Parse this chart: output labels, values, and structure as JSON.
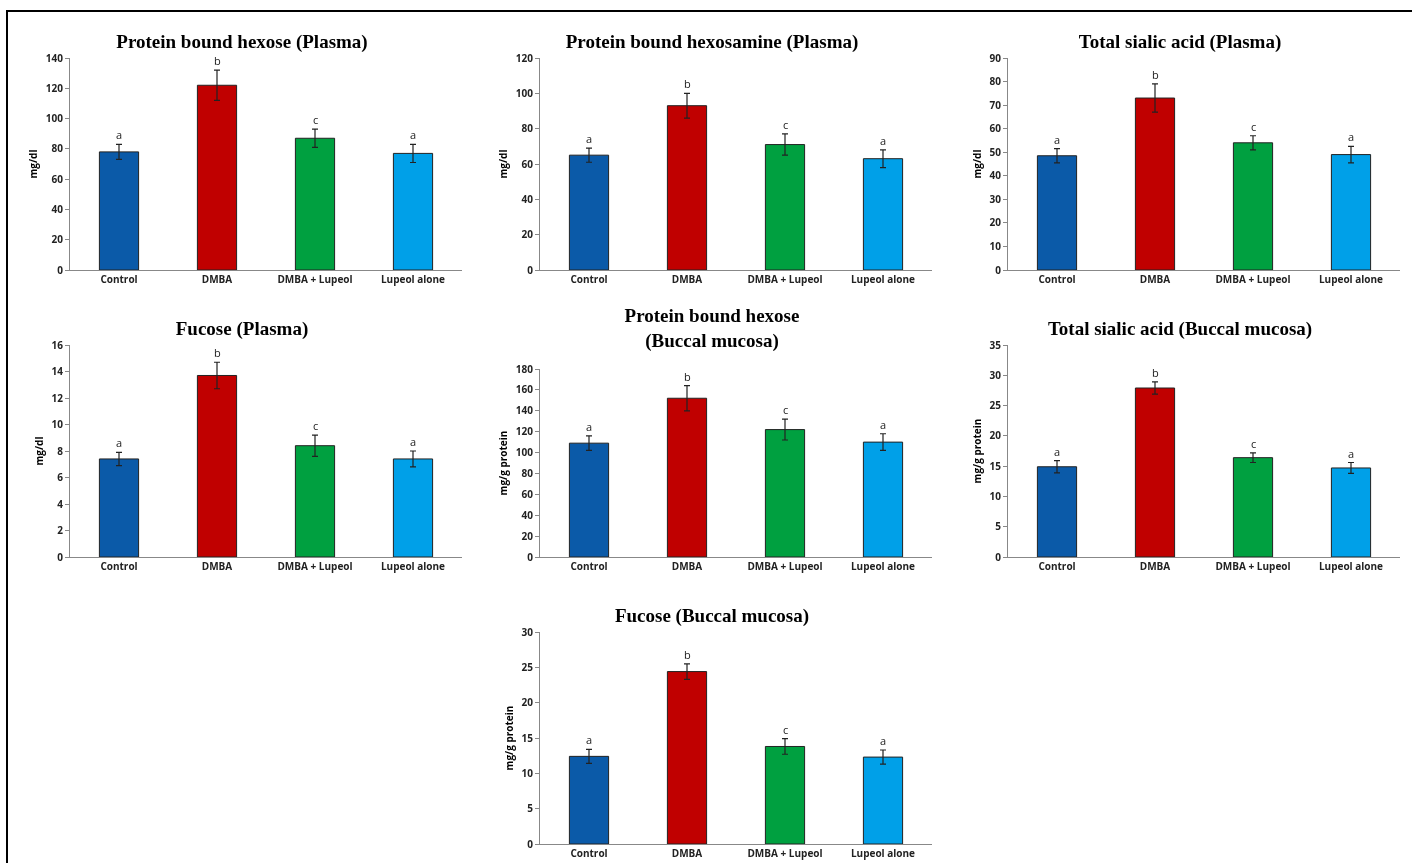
{
  "chart_data": [
    {
      "type": "bar",
      "title": "Protein bound hexose (Plasma)",
      "ylabel": "mg/dl",
      "categories": [
        "Control",
        "DMBA",
        "DMBA + Lupeol",
        "Lupeol alone"
      ],
      "values": [
        78,
        122,
        87,
        77
      ],
      "errors": [
        5,
        10,
        6,
        6
      ],
      "colors": [
        "#0b5aa8",
        "#c00000",
        "#00a040",
        "#00a0e8"
      ],
      "ylim": [
        0,
        140
      ],
      "yticks": [
        0,
        20,
        40,
        60,
        80,
        100,
        120,
        140
      ],
      "annotations": [
        {
          "text": "a",
          "x": "Control",
          "y": 83
        },
        {
          "text": "b",
          "x": "DMBA",
          "y": 132
        },
        {
          "text": "c",
          "x": "DMBA + Lupeol",
          "y": 93
        },
        {
          "text": "a",
          "x": "Lupeol alone",
          "y": 83
        }
      ]
    },
    {
      "type": "bar",
      "title": "Protein bound hexosamine (Plasma)",
      "ylabel": "mg/dl",
      "categories": [
        "Control",
        "DMBA",
        "DMBA + Lupeol",
        "Lupeol alone"
      ],
      "values": [
        65,
        93,
        71,
        63
      ],
      "errors": [
        4,
        7,
        6,
        5
      ],
      "colors": [
        "#0b5aa8",
        "#c00000",
        "#00a040",
        "#00a0e8"
      ],
      "ylim": [
        0,
        120
      ],
      "yticks": [
        0,
        20,
        40,
        60,
        80,
        100,
        120
      ],
      "annotations": [
        {
          "text": "a",
          "x": "Control",
          "y": 69
        },
        {
          "text": "b",
          "x": "DMBA",
          "y": 100
        },
        {
          "text": "c",
          "x": "DMBA + Lupeol",
          "y": 77
        },
        {
          "text": "a",
          "x": "Lupeol alone",
          "y": 68
        }
      ]
    },
    {
      "type": "bar",
      "title": "Total sialic acid (Plasma)",
      "ylabel": "mg/dl",
      "categories": [
        "Control",
        "DMBA",
        "DMBA + Lupeol",
        "Lupeol alone"
      ],
      "values": [
        48.5,
        73,
        54,
        49
      ],
      "errors": [
        3,
        6,
        3,
        3.5
      ],
      "colors": [
        "#0b5aa8",
        "#c00000",
        "#00a040",
        "#00a0e8"
      ],
      "ylim": [
        0,
        90
      ],
      "yticks": [
        0,
        10,
        20,
        30,
        40,
        50,
        60,
        70,
        80,
        90
      ],
      "annotations": [
        {
          "text": "a",
          "x": "Control",
          "y": 51.5
        },
        {
          "text": "b",
          "x": "DMBA",
          "y": 79
        },
        {
          "text": "c",
          "x": "DMBA + Lupeol",
          "y": 57
        },
        {
          "text": "a",
          "x": "Lupeol alone",
          "y": 52.5
        }
      ]
    },
    {
      "type": "bar",
      "title": "Fucose (Plasma)",
      "ylabel": "mg/dl",
      "categories": [
        "Control",
        "DMBA",
        "DMBA + Lupeol",
        "Lupeol alone"
      ],
      "values": [
        7.4,
        13.7,
        8.4,
        7.4
      ],
      "errors": [
        0.5,
        1,
        0.8,
        0.6
      ],
      "colors": [
        "#0b5aa8",
        "#c00000",
        "#00a040",
        "#00a0e8"
      ],
      "ylim": [
        0,
        16
      ],
      "yticks": [
        0,
        2,
        4,
        6,
        8,
        10,
        12,
        14,
        16
      ],
      "annotations": [
        {
          "text": "a",
          "x": "Control",
          "y": 7.9
        },
        {
          "text": "b",
          "x": "DMBA",
          "y": 14.7
        },
        {
          "text": "c",
          "x": "DMBA + Lupeol",
          "y": 9.2
        },
        {
          "text": "a",
          "x": "Lupeol alone",
          "y": 8
        }
      ]
    },
    {
      "type": "bar",
      "title": "Protein bound hexose\n(Buccal mucosa)",
      "ylabel": "mg/g protein",
      "categories": [
        "Control",
        "DMBA",
        "DMBA + Lupeol",
        "Lupeol alone"
      ],
      "values": [
        109,
        152,
        122,
        110
      ],
      "errors": [
        7,
        12,
        10,
        8
      ],
      "colors": [
        "#0b5aa8",
        "#c00000",
        "#00a040",
        "#00a0e8"
      ],
      "ylim": [
        0,
        180
      ],
      "yticks": [
        0,
        20,
        40,
        60,
        80,
        100,
        120,
        140,
        160,
        180
      ],
      "annotations": [
        {
          "text": "a",
          "x": "Control",
          "y": 116
        },
        {
          "text": "b",
          "x": "DMBA",
          "y": 164
        },
        {
          "text": "c",
          "x": "DMBA + Lupeol",
          "y": 132
        },
        {
          "text": "a",
          "x": "Lupeol alone",
          "y": 118
        }
      ]
    },
    {
      "type": "bar",
      "title": "Total sialic acid (Buccal mucosa)",
      "ylabel": "mg/g protein",
      "categories": [
        "Control",
        "DMBA",
        "DMBA + Lupeol",
        "Lupeol alone"
      ],
      "values": [
        14.9,
        27.9,
        16.4,
        14.7
      ],
      "errors": [
        1,
        1,
        0.8,
        0.9
      ],
      "colors": [
        "#0b5aa8",
        "#c00000",
        "#00a040",
        "#00a0e8"
      ],
      "ylim": [
        0,
        35
      ],
      "yticks": [
        0,
        5,
        10,
        15,
        20,
        25,
        30,
        35
      ],
      "annotations": [
        {
          "text": "a",
          "x": "Control",
          "y": 15.9
        },
        {
          "text": "b",
          "x": "DMBA",
          "y": 28.9
        },
        {
          "text": "c",
          "x": "DMBA + Lupeol",
          "y": 17.2
        },
        {
          "text": "a",
          "x": "Lupeol alone",
          "y": 15.6
        }
      ]
    },
    {
      "type": "bar",
      "title": "Fucose (Buccal mucosa)",
      "ylabel": "mg/g protein",
      "categories": [
        "Control",
        "DMBA",
        "DMBA + Lupeol",
        "Lupeol alone"
      ],
      "values": [
        12.4,
        24.4,
        13.8,
        12.3
      ],
      "errors": [
        1,
        1.1,
        1.1,
        1
      ],
      "colors": [
        "#0b5aa8",
        "#c00000",
        "#00a040",
        "#00a0e8"
      ],
      "ylim": [
        0,
        30
      ],
      "yticks": [
        0,
        5,
        10,
        15,
        20,
        25,
        30
      ],
      "annotations": [
        {
          "text": "a",
          "x": "Control",
          "y": 13.4
        },
        {
          "text": "b",
          "x": "DMBA",
          "y": 25.5
        },
        {
          "text": "c",
          "x": "DMBA + Lupeol",
          "y": 14.9
        },
        {
          "text": "a",
          "x": "Lupeol alone",
          "y": 13.3
        }
      ]
    }
  ]
}
